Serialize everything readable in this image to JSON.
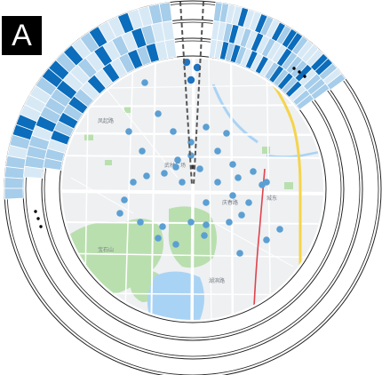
{
  "figure": {
    "panel_label": "A",
    "colors": {
      "dark": "#0b6dbb",
      "mid": "#a6cdea",
      "light": "#d8e9f6",
      "point": "#5b9fd3",
      "selected_point": "#1e74c0",
      "ring_stroke": "#222222",
      "road": "#ffffff",
      "park": "#b9dfae",
      "water": "#a9d3f5",
      "metro": "#e0434d",
      "highway": "#f5d44c",
      "land": "#eef0f2"
    },
    "rings": [
      {
        "name": "outer",
        "cells": [
          "mid",
          "mid",
          "light",
          "light",
          "dark",
          "light",
          "light",
          "dark",
          "mid",
          "light",
          "dark",
          "mid",
          "dark",
          "dark",
          "mid",
          "light",
          "light",
          "light",
          "dark",
          "dark",
          "mid",
          "light",
          "mid",
          "mid",
          "mid",
          "mid"
        ]
      },
      {
        "name": "middle",
        "cells": [
          "light",
          "light",
          "mid",
          "dark",
          "light",
          "mid",
          "light",
          "dark",
          "light",
          "mid",
          "light",
          "light",
          "dark",
          "mid",
          "mid",
          "mid",
          "dark",
          "light",
          "mid",
          "mid",
          "mid",
          "light",
          "light",
          "mid"
        ]
      },
      {
        "name": "inner",
        "cells": [
          "light",
          "light",
          "dark",
          "mid",
          "dark",
          "mid",
          "light",
          "dark",
          "light",
          "dark",
          "light",
          "mid",
          "dark",
          "mid",
          "dark",
          "mid",
          "dark",
          "light",
          "mid",
          "mid",
          "light",
          "mid",
          "mid"
        ]
      }
    ],
    "map_points": 40,
    "selected_points": 4
  }
}
